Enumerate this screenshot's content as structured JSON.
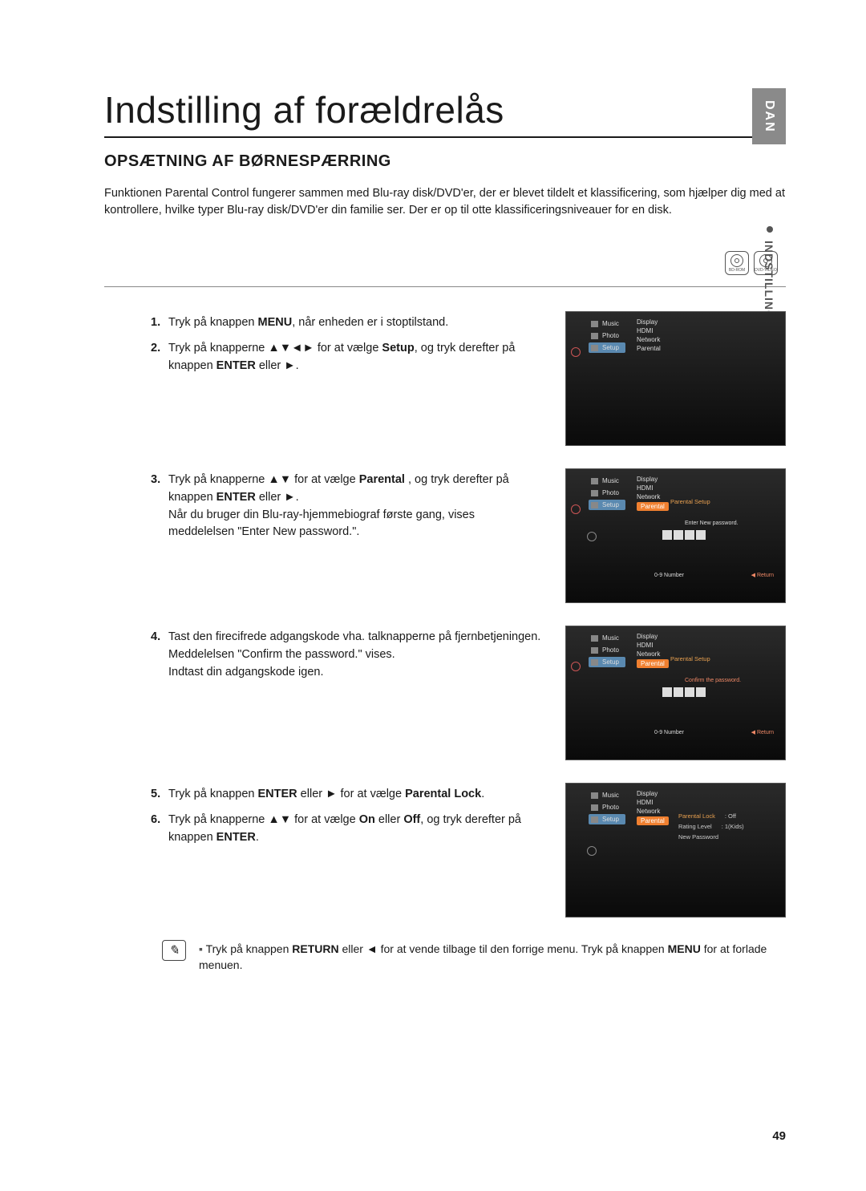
{
  "sideTab": "DAN",
  "sideLabel": "INDSTILLING AF FORÆLDRELÅS",
  "pageTitle": "Indstilling af forældrelås",
  "sectionTitle": "OPSÆTNING AF BØRNESPÆRRING",
  "intro": "Funktionen Parental Control fungerer sammen med Blu-ray disk/DVD'er, der er blevet tildelt et klassificering, som hjælper dig med at kontrollere, hvilke typer Blu-ray disk/DVD'er din familie ser. Der er op til otte klassificeringsniveauer for en disk.",
  "discLabels": [
    "BD-ROM",
    "DVD-VIDEO"
  ],
  "steps": {
    "s1": {
      "num": "1.",
      "pre": "Tryk på knappen ",
      "b1": "MENU",
      "post": ", når enheden er i stoptilstand."
    },
    "s2": {
      "num": "2.",
      "pre": "Tryk på knapperne ▲▼◄► for at vælge ",
      "b1": "Setup",
      "mid": ", og tryk derefter på knappen ",
      "b2": "ENTER",
      "post": " eller ►."
    },
    "s3": {
      "num": "3.",
      "pre": "Tryk på knapperne ▲▼ for at vælge ",
      "b1": "Parental",
      "mid": " , og tryk derefter på knappen ",
      "b2": "ENTER",
      "post": " eller ►.",
      "extra": "Når du bruger din Blu-ray-hjemmebiograf første gang, vises meddelelsen \"Enter New password.\"."
    },
    "s4": {
      "num": "4.",
      "pre": "Tast den firecifrede adgangskode vha. talknapperne på fjernbetjeningen.",
      "extra1": "Meddelelsen \"Confirm the password.\" vises.",
      "extra2": "Indtast din adgangskode igen."
    },
    "s5": {
      "num": "5.",
      "pre": "Tryk på knappen ",
      "b1": "ENTER",
      "mid": " eller ► for at vælge ",
      "b2": "Parental Lock",
      "post": "."
    },
    "s6": {
      "num": "6.",
      "pre": "Tryk på knapperne ▲▼ for at vælge ",
      "b1": "On",
      "mid": " eller ",
      "b2": "Off",
      "mid2": ", og tryk derefter på knappen ",
      "b3": "ENTER",
      "post": "."
    }
  },
  "note": {
    "pre": "Tryk på knappen ",
    "b1": "RETURN",
    "mid": " eller ◄ for at vende tilbage til den forrige menu. Tryk på knappen ",
    "b2": "MENU",
    "post": " for at forlade menuen."
  },
  "screen": {
    "menu": [
      "Music",
      "Photo",
      "Setup"
    ],
    "sub": [
      "Display",
      "HDMI",
      "Network",
      "Parental"
    ],
    "parentalSetup": "Parental Setup",
    "enterNew": "Enter New password.",
    "confirm": "Confirm the password.",
    "hint09": "0-9  Number",
    "hintReturn": "Return",
    "opts": {
      "lock": "Parental Lock",
      "lockVal": ": Off",
      "rating": "Rating Level",
      "ratingVal": ": 1(Kids)",
      "newpw": "New Password"
    }
  },
  "pageNum": "49"
}
